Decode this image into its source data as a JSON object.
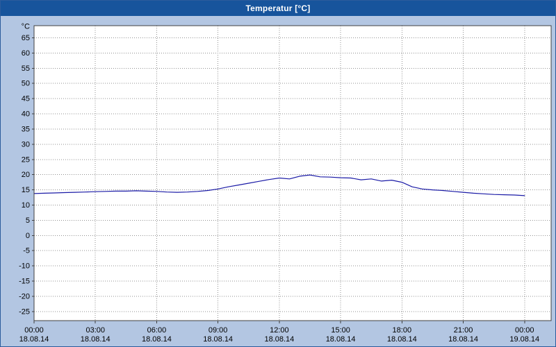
{
  "window": {
    "title": "Temperatur [°C]"
  },
  "colors": {
    "titlebar": "#17549c",
    "background": "#b3c6e2",
    "plot_background": "#ffffff",
    "plot_border": "#404040",
    "gridline": "#909090",
    "line": "#1a1aa6",
    "text": "#000000"
  },
  "chart_data": {
    "type": "line",
    "title": "Temperatur [°C]",
    "unit_label": "°C",
    "grid": true,
    "legend": "none",
    "ylim": [
      -28,
      69
    ],
    "xlim_hours": [
      0,
      25.3
    ],
    "y_ticks": [
      65,
      60,
      55,
      50,
      45,
      40,
      35,
      30,
      25,
      20,
      15,
      10,
      5,
      0,
      -5,
      -10,
      -15,
      -20,
      -25
    ],
    "x_ticks": [
      {
        "hour": 0,
        "time": "00:00",
        "date": "18.08.14"
      },
      {
        "hour": 3,
        "time": "03:00",
        "date": "18.08.14"
      },
      {
        "hour": 6,
        "time": "06:00",
        "date": "18.08.14"
      },
      {
        "hour": 9,
        "time": "09:00",
        "date": "18.08.14"
      },
      {
        "hour": 12,
        "time": "12:00",
        "date": "18.08.14"
      },
      {
        "hour": 15,
        "time": "15:00",
        "date": "18.08.14"
      },
      {
        "hour": 18,
        "time": "18:00",
        "date": "18.08.14"
      },
      {
        "hour": 21,
        "time": "21:00",
        "date": "18.08.14"
      },
      {
        "hour": 24,
        "time": "00:00",
        "date": "19.08.14"
      }
    ],
    "series": [
      {
        "name": "Temperatur",
        "x_hours": [
          0,
          0.5,
          1,
          1.5,
          2,
          2.5,
          3,
          3.5,
          4,
          4.5,
          5,
          5.5,
          6,
          6.5,
          7,
          7.5,
          8,
          8.5,
          9,
          9.5,
          10,
          10.5,
          11,
          11.5,
          12,
          12.5,
          13,
          13.5,
          14,
          14.5,
          15,
          15.5,
          16,
          16.5,
          17,
          17.5,
          18,
          18.5,
          19,
          19.5,
          20,
          20.5,
          21,
          21.5,
          22,
          22.5,
          23,
          23.5,
          24
        ],
        "values": [
          13.8,
          13.9,
          14.0,
          14.1,
          14.2,
          14.3,
          14.4,
          14.5,
          14.6,
          14.6,
          14.7,
          14.6,
          14.5,
          14.3,
          14.2,
          14.3,
          14.5,
          14.8,
          15.3,
          16.0,
          16.6,
          17.2,
          17.8,
          18.4,
          18.9,
          18.6,
          19.5,
          19.9,
          19.3,
          19.2,
          19.0,
          18.9,
          18.3,
          18.6,
          17.9,
          18.2,
          17.5,
          16.0,
          15.3,
          15.0,
          14.8,
          14.5,
          14.2,
          13.9,
          13.7,
          13.5,
          13.4,
          13.3,
          13.1
        ]
      }
    ]
  }
}
